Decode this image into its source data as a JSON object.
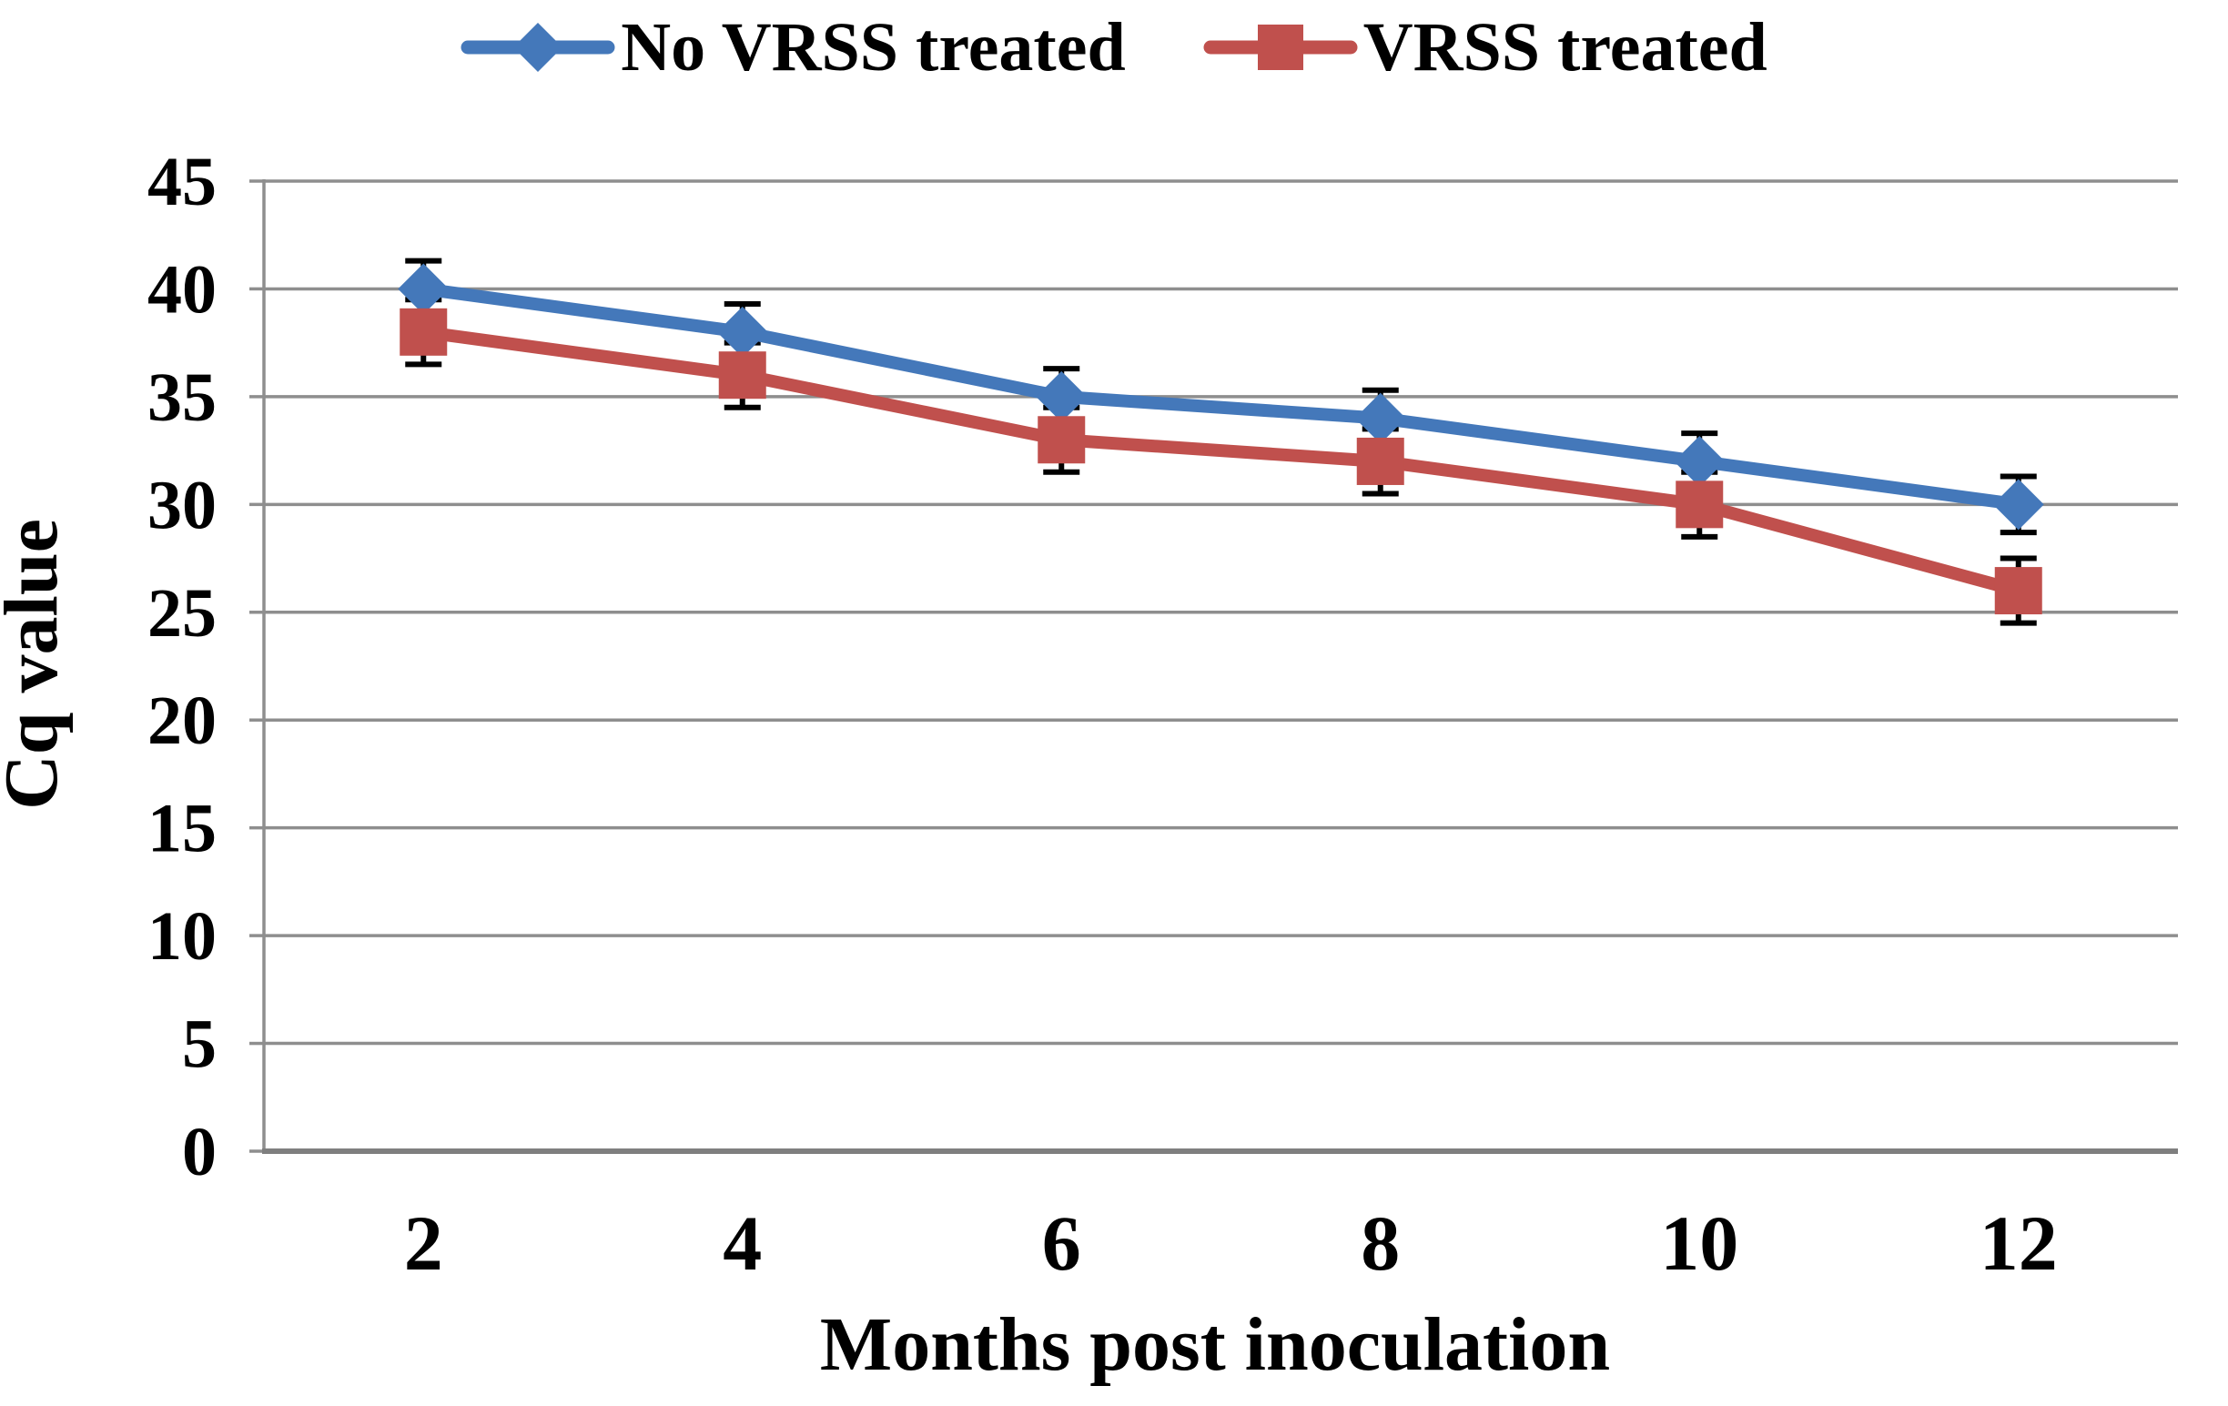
{
  "chart_data": {
    "type": "line",
    "xlabel": "Months post inoculation",
    "ylabel": "Cq value",
    "categories": [
      "2",
      "4",
      "6",
      "8",
      "10",
      "12"
    ],
    "yticks": [
      45,
      40,
      35,
      30,
      25,
      20,
      15,
      10,
      5,
      0
    ],
    "ylim": [
      0,
      45
    ],
    "grid": "horizontal-gridlines",
    "legend_position": "top-center",
    "series": [
      {
        "name": "No VRSS treated",
        "marker": "diamond",
        "color": "#4478BA",
        "values": [
          40,
          38,
          35,
          34,
          32,
          30
        ],
        "error_bar": 1.3
      },
      {
        "name": "VRSS treated",
        "marker": "square",
        "color": "#C0504D",
        "values": [
          38,
          36,
          33,
          32,
          30,
          26
        ],
        "error_bar": 1.5
      }
    ],
    "colors": {
      "gridline": "#8E8E8E",
      "axis": "#7F7F7F",
      "error_bar": "#000000",
      "text": "#000000",
      "background": "#FFFFFF"
    }
  }
}
